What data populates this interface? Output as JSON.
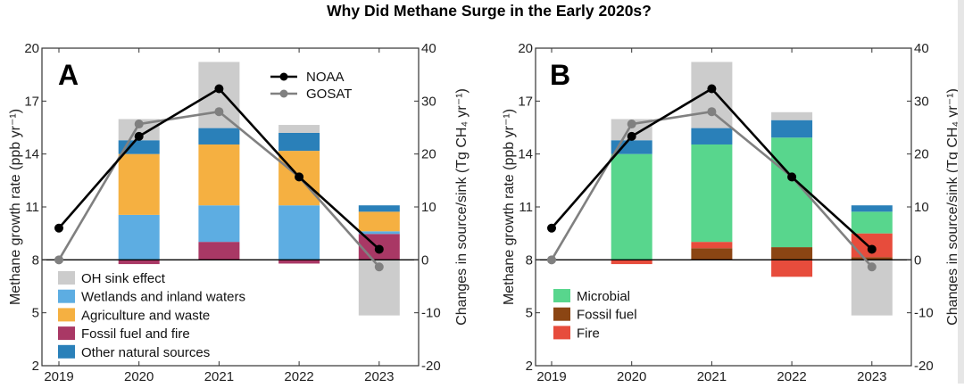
{
  "chart_data": {
    "title": "Why Did Methane Surge in the Early 2020s?",
    "type": "bar",
    "panels": [
      {
        "id": "A",
        "label": "A",
        "type": "stacked-bar+line",
        "categories": [
          "2019",
          "2020",
          "2021",
          "2022",
          "2023"
        ],
        "ylabel_left": "Methane growth rate (ppb yr⁻¹)",
        "ylabel_right": "Changes in source/sink (Tg CH₄ yr⁻¹)",
        "ylim_left": [
          2,
          20
        ],
        "yticks_left": [
          2,
          5,
          8,
          11,
          14,
          17,
          20
        ],
        "ylim_right": [
          -20,
          40
        ],
        "yticks_right": [
          -20,
          -10,
          0,
          10,
          20,
          30,
          40
        ],
        "bar_series": [
          {
            "key": "fossil",
            "name": "Fossil fuel and fire",
            "color": "#a93865",
            "values": [
              null,
              -0.8,
              3.4,
              -0.7,
              4.9
            ]
          },
          {
            "key": "wetlands",
            "name": "Wetlands and inland waters",
            "color": "#5dade2",
            "values": [
              null,
              8.5,
              6.9,
              10.3,
              0.5
            ]
          },
          {
            "key": "agriculture",
            "name": "Agriculture and waste",
            "color": "#f5b041",
            "values": [
              null,
              11.5,
              11.5,
              10.3,
              3.7
            ]
          },
          {
            "key": "other",
            "name": "Other natural sources",
            "color": "#2a80b9",
            "values": [
              null,
              2.6,
              3.1,
              3.4,
              1.2
            ]
          },
          {
            "key": "oh",
            "name": "OH sink effect",
            "color": "#cccccc",
            "values": [
              null,
              4.0,
              12.5,
              1.5,
              -10.5
            ]
          }
        ],
        "legend_order": [
          "oh",
          "wetlands",
          "agriculture",
          "fossil",
          "other"
        ],
        "legend_position": "bottom-left",
        "line_series": [
          {
            "name": "NOAA",
            "color": "#000000",
            "values": [
              9.8,
              15.0,
              17.7,
              12.7,
              8.6
            ]
          },
          {
            "name": "GOSAT",
            "color": "#808080",
            "values": [
              8.0,
              15.7,
              16.4,
              12.7,
              7.6
            ]
          }
        ],
        "line_legend_position": "top-right",
        "zero_line_tg": 0
      },
      {
        "id": "B",
        "label": "B",
        "type": "stacked-bar+line",
        "categories": [
          "2019",
          "2020",
          "2021",
          "2022",
          "2023"
        ],
        "ylabel_left": "Methane growth rate (ppb yr⁻¹)",
        "ylabel_right": "Changes in source/sink (Tg CH₄ yr⁻¹)",
        "ylim_left": [
          2,
          20
        ],
        "yticks_left": [
          2,
          5,
          8,
          11,
          14,
          17,
          20
        ],
        "ylim_right": [
          -20,
          40
        ],
        "yticks_right": [
          -20,
          -10,
          0,
          10,
          20,
          30,
          40
        ],
        "bar_series": [
          {
            "key": "fossil",
            "name": "Fossil fuel",
            "color": "#8b4513",
            "values": [
              null,
              0,
              2.2,
              2.4,
              0.5
            ]
          },
          {
            "key": "fire",
            "name": "Fire",
            "color": "#e74c3c",
            "values": [
              null,
              -0.8,
              1.2,
              -3.2,
              4.5
            ]
          },
          {
            "key": "microbial",
            "name": "Microbial",
            "color": "#58d68d",
            "values": [
              null,
              20.0,
              18.4,
              20.7,
              4.1
            ]
          },
          {
            "key": "other",
            "name": "Other natural sources",
            "color": "#2a80b9",
            "values": [
              null,
              2.6,
              3.1,
              3.3,
              1.2
            ]
          },
          {
            "key": "oh",
            "name": "OH sink effect",
            "color": "#cccccc",
            "values": [
              null,
              4.0,
              12.5,
              1.5,
              -10.5
            ]
          }
        ],
        "legend_order": [
          "microbial",
          "fossil",
          "fire"
        ],
        "legend_position": "bottom-left",
        "line_series": [
          {
            "name": "NOAA",
            "color": "#000000",
            "values": [
              9.8,
              15.0,
              17.7,
              12.7,
              8.6
            ]
          },
          {
            "name": "GOSAT",
            "color": "#808080",
            "values": [
              8.0,
              15.7,
              16.4,
              12.7,
              7.6
            ]
          }
        ],
        "line_legend_position": "none",
        "zero_line_tg": 0
      }
    ]
  }
}
